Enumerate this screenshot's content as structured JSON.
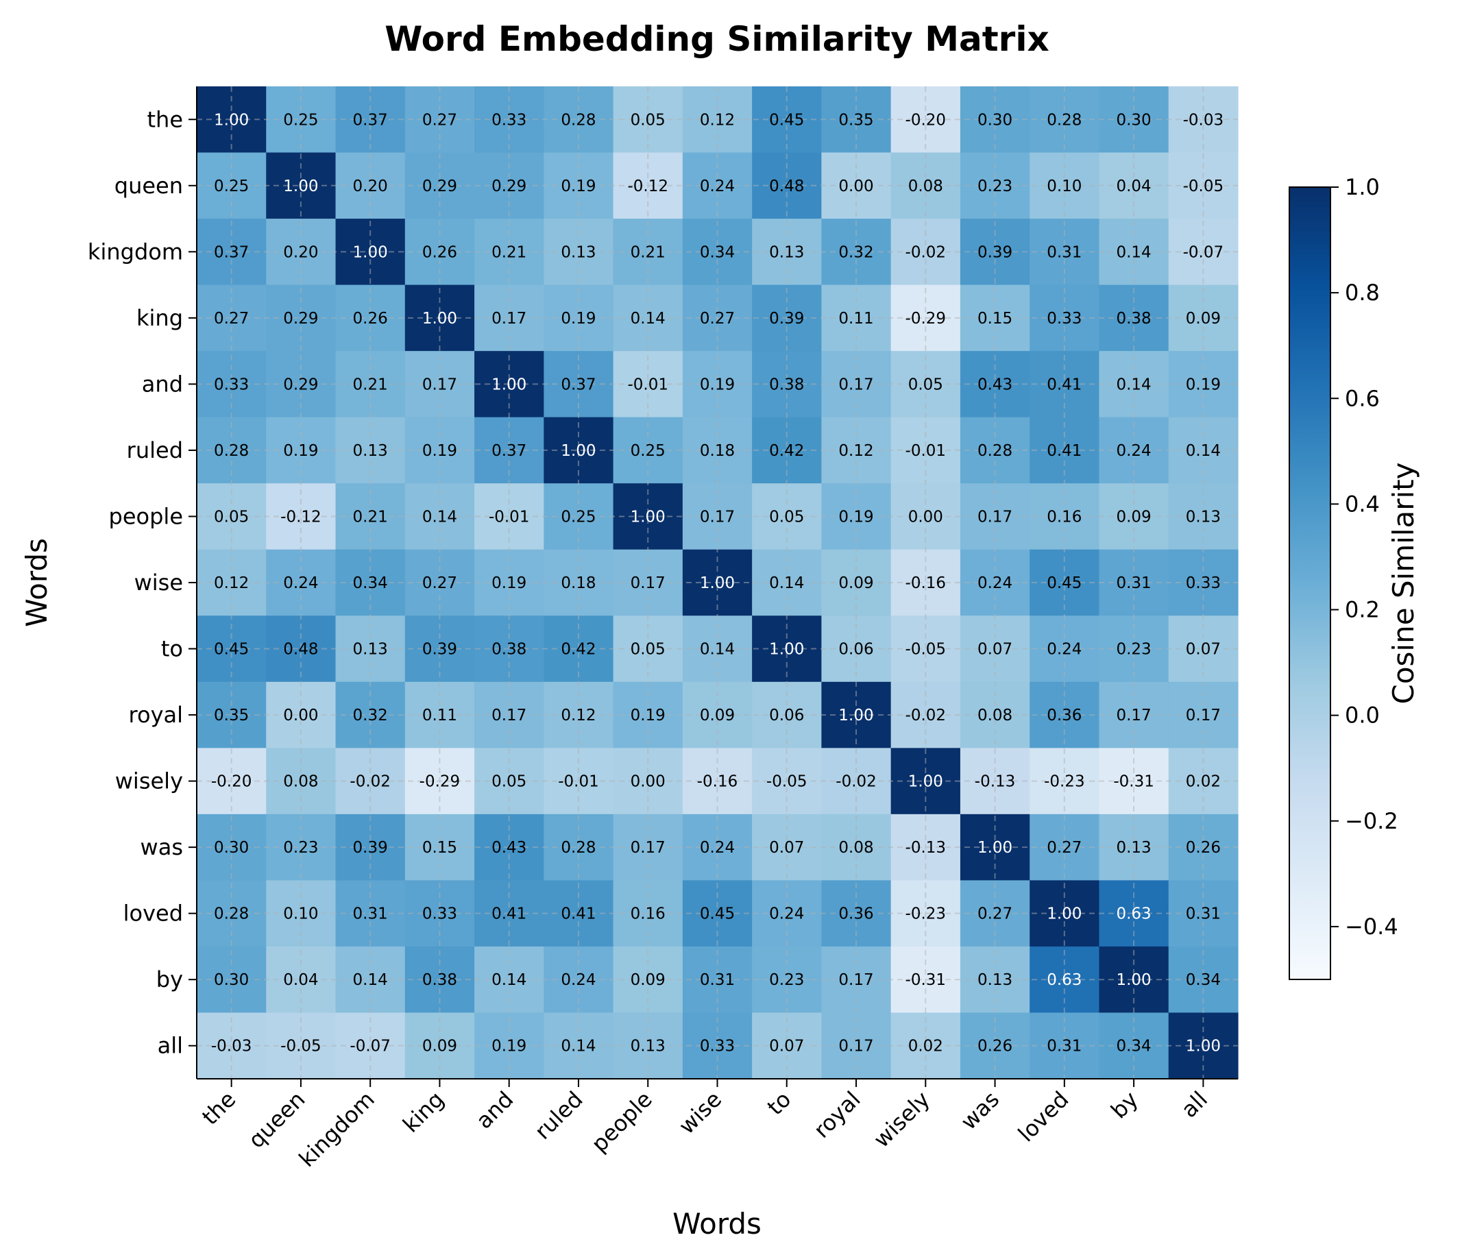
{
  "chart_data": {
    "type": "heatmap",
    "title": "Word Embedding Similarity Matrix",
    "xlabel": "Words",
    "ylabel": "Words",
    "colorbar_label": "Cosine Similarity",
    "colormap": "Blues",
    "vmin": -0.5,
    "vmax": 1.0,
    "colorbar_ticks": [
      "-0.4",
      "-0.2",
      "0.0",
      "0.2",
      "0.4",
      "0.6",
      "0.8",
      "1.0"
    ],
    "grid": true,
    "labels": [
      "the",
      "queen",
      "kingdom",
      "king",
      "and",
      "ruled",
      "people",
      "wise",
      "to",
      "royal",
      "wisely",
      "was",
      "loved",
      "by",
      "all"
    ],
    "values": [
      [
        1.0,
        0.25,
        0.37,
        0.27,
        0.33,
        0.28,
        0.05,
        0.12,
        0.45,
        0.35,
        -0.2,
        0.3,
        0.28,
        0.3,
        -0.03
      ],
      [
        0.25,
        1.0,
        0.2,
        0.29,
        0.29,
        0.19,
        -0.12,
        0.24,
        0.48,
        0.0,
        0.08,
        0.23,
        0.1,
        0.04,
        -0.05
      ],
      [
        0.37,
        0.2,
        1.0,
        0.26,
        0.21,
        0.13,
        0.21,
        0.34,
        0.13,
        0.32,
        -0.02,
        0.39,
        0.31,
        0.14,
        -0.07
      ],
      [
        0.27,
        0.29,
        0.26,
        1.0,
        0.17,
        0.19,
        0.14,
        0.27,
        0.39,
        0.11,
        -0.29,
        0.15,
        0.33,
        0.38,
        0.09
      ],
      [
        0.33,
        0.29,
        0.21,
        0.17,
        1.0,
        0.37,
        -0.01,
        0.19,
        0.38,
        0.17,
        0.05,
        0.43,
        0.41,
        0.14,
        0.19
      ],
      [
        0.28,
        0.19,
        0.13,
        0.19,
        0.37,
        1.0,
        0.25,
        0.18,
        0.42,
        0.12,
        -0.01,
        0.28,
        0.41,
        0.24,
        0.14
      ],
      [
        0.05,
        -0.12,
        0.21,
        0.14,
        -0.01,
        0.25,
        1.0,
        0.17,
        0.05,
        0.19,
        0.0,
        0.17,
        0.16,
        0.09,
        0.13
      ],
      [
        0.12,
        0.24,
        0.34,
        0.27,
        0.19,
        0.18,
        0.17,
        1.0,
        0.14,
        0.09,
        -0.16,
        0.24,
        0.45,
        0.31,
        0.33
      ],
      [
        0.45,
        0.48,
        0.13,
        0.39,
        0.38,
        0.42,
        0.05,
        0.14,
        1.0,
        0.06,
        -0.05,
        0.07,
        0.24,
        0.23,
        0.07
      ],
      [
        0.35,
        0.0,
        0.32,
        0.11,
        0.17,
        0.12,
        0.19,
        0.09,
        0.06,
        1.0,
        -0.02,
        0.08,
        0.36,
        0.17,
        0.17
      ],
      [
        -0.2,
        0.08,
        -0.02,
        -0.29,
        0.05,
        -0.01,
        0.0,
        -0.16,
        -0.05,
        -0.02,
        1.0,
        -0.13,
        -0.23,
        -0.31,
        0.02
      ],
      [
        0.3,
        0.23,
        0.39,
        0.15,
        0.43,
        0.28,
        0.17,
        0.24,
        0.07,
        0.08,
        -0.13,
        1.0,
        0.27,
        0.13,
        0.26
      ],
      [
        0.28,
        0.1,
        0.31,
        0.33,
        0.41,
        0.41,
        0.16,
        0.45,
        0.24,
        0.36,
        -0.23,
        0.27,
        1.0,
        0.63,
        0.31
      ],
      [
        0.3,
        0.04,
        0.14,
        0.38,
        0.14,
        0.24,
        0.09,
        0.31,
        0.23,
        0.17,
        -0.31,
        0.13,
        0.63,
        1.0,
        0.34
      ],
      [
        -0.03,
        -0.05,
        -0.07,
        0.09,
        0.19,
        0.14,
        0.13,
        0.33,
        0.07,
        0.17,
        0.02,
        0.26,
        0.31,
        0.34,
        1.0
      ]
    ]
  }
}
